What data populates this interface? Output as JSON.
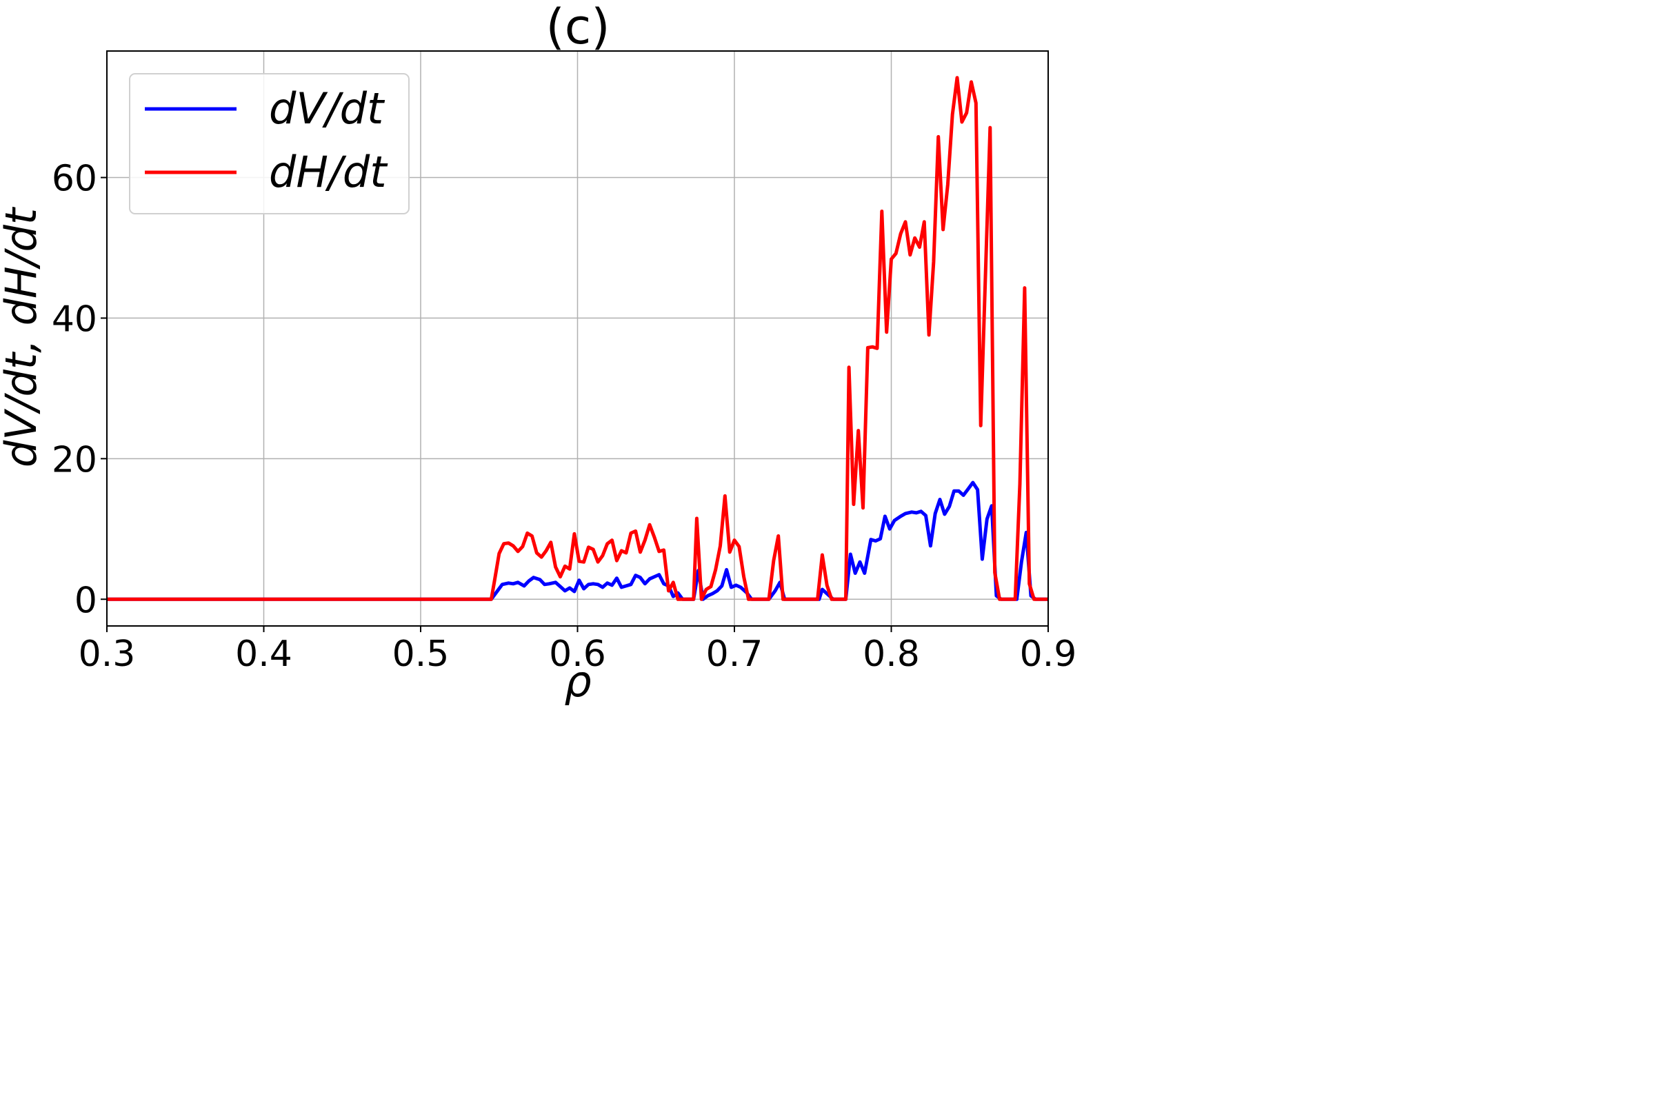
{
  "chart_data": {
    "type": "line",
    "title": "(c)",
    "xlabel": "ρ",
    "ylabel": "dV/dt, dH/dt",
    "xlim": [
      0.3,
      0.9
    ],
    "ylim": [
      -3.8,
      78
    ],
    "xticks": [
      0.3,
      0.4,
      0.5,
      0.6,
      0.7,
      0.8,
      0.9
    ],
    "xtick_labels": [
      "0.3",
      "0.4",
      "0.5",
      "0.6",
      "0.7",
      "0.8",
      "0.9"
    ],
    "yticks": [
      0,
      20,
      40,
      60
    ],
    "ytick_labels": [
      "0",
      "20",
      "40",
      "60"
    ],
    "grid": true,
    "legend_position": "top-left",
    "series": [
      {
        "name": "dV/dt",
        "color": "#0000ff",
        "points": [
          [
            0.3,
            0
          ],
          [
            0.545,
            0
          ],
          [
            0.549,
            1.2
          ],
          [
            0.552,
            2.1
          ],
          [
            0.556,
            2.3
          ],
          [
            0.559,
            2.2
          ],
          [
            0.562,
            2.4
          ],
          [
            0.566,
            1.9
          ],
          [
            0.569,
            2.6
          ],
          [
            0.572,
            3.1
          ],
          [
            0.576,
            2.8
          ],
          [
            0.579,
            2.1
          ],
          [
            0.582,
            2.2
          ],
          [
            0.586,
            2.4
          ],
          [
            0.589,
            1.8
          ],
          [
            0.592,
            1.2
          ],
          [
            0.595,
            1.6
          ],
          [
            0.598,
            1.1
          ],
          [
            0.601,
            2.7
          ],
          [
            0.604,
            1.5
          ],
          [
            0.607,
            2.1
          ],
          [
            0.61,
            2.2
          ],
          [
            0.613,
            2.1
          ],
          [
            0.616,
            1.7
          ],
          [
            0.619,
            2.3
          ],
          [
            0.622,
            2.0
          ],
          [
            0.625,
            3.0
          ],
          [
            0.628,
            1.7
          ],
          [
            0.631,
            1.9
          ],
          [
            0.634,
            2.1
          ],
          [
            0.637,
            3.4
          ],
          [
            0.64,
            3.1
          ],
          [
            0.643,
            2.2
          ],
          [
            0.646,
            2.9
          ],
          [
            0.649,
            3.2
          ],
          [
            0.652,
            3.5
          ],
          [
            0.655,
            2.2
          ],
          [
            0.658,
            1.9
          ],
          [
            0.661,
            0.4
          ],
          [
            0.664,
            0.9
          ],
          [
            0.667,
            0
          ],
          [
            0.674,
            0
          ],
          [
            0.677,
            4.1
          ],
          [
            0.68,
            0
          ],
          [
            0.683,
            0.5
          ],
          [
            0.686,
            0.8
          ],
          [
            0.689,
            1.2
          ],
          [
            0.692,
            1.9
          ],
          [
            0.695,
            4.2
          ],
          [
            0.698,
            1.7
          ],
          [
            0.701,
            2.0
          ],
          [
            0.704,
            1.7
          ],
          [
            0.708,
            0.9
          ],
          [
            0.711,
            0
          ],
          [
            0.722,
            0
          ],
          [
            0.726,
            1.2
          ],
          [
            0.729,
            2.4
          ],
          [
            0.732,
            0
          ],
          [
            0.754,
            0
          ],
          [
            0.756,
            1.4
          ],
          [
            0.759,
            0.8
          ],
          [
            0.763,
            0
          ],
          [
            0.771,
            0
          ],
          [
            0.774,
            6.4
          ],
          [
            0.777,
            3.7
          ],
          [
            0.78,
            5.3
          ],
          [
            0.783,
            3.7
          ],
          [
            0.787,
            8.5
          ],
          [
            0.79,
            8.3
          ],
          [
            0.793,
            8.6
          ],
          [
            0.796,
            11.8
          ],
          [
            0.799,
            10.0
          ],
          [
            0.802,
            11.2
          ],
          [
            0.806,
            11.8
          ],
          [
            0.809,
            12.2
          ],
          [
            0.813,
            12.4
          ],
          [
            0.816,
            12.3
          ],
          [
            0.819,
            12.5
          ],
          [
            0.822,
            11.9
          ],
          [
            0.825,
            7.6
          ],
          [
            0.828,
            12.2
          ],
          [
            0.831,
            14.2
          ],
          [
            0.834,
            12.1
          ],
          [
            0.837,
            13.2
          ],
          [
            0.84,
            15.4
          ],
          [
            0.843,
            15.4
          ],
          [
            0.846,
            14.8
          ],
          [
            0.849,
            15.7
          ],
          [
            0.852,
            16.6
          ],
          [
            0.855,
            15.6
          ],
          [
            0.858,
            5.7
          ],
          [
            0.861,
            11.4
          ],
          [
            0.864,
            13.3
          ],
          [
            0.867,
            0.5
          ],
          [
            0.87,
            0
          ],
          [
            0.88,
            0
          ],
          [
            0.883,
            5.3
          ],
          [
            0.886,
            9.5
          ],
          [
            0.889,
            0.5
          ],
          [
            0.892,
            0
          ],
          [
            0.9,
            0
          ]
        ]
      },
      {
        "name": "dH/dt",
        "color": "#ff0000",
        "points": [
          [
            0.3,
            0
          ],
          [
            0.545,
            0
          ],
          [
            0.547,
            2.5
          ],
          [
            0.55,
            6.5
          ],
          [
            0.553,
            7.9
          ],
          [
            0.556,
            8.0
          ],
          [
            0.559,
            7.6
          ],
          [
            0.562,
            6.8
          ],
          [
            0.565,
            7.5
          ],
          [
            0.568,
            9.4
          ],
          [
            0.571,
            9.0
          ],
          [
            0.574,
            6.6
          ],
          [
            0.577,
            6.0
          ],
          [
            0.58,
            6.9
          ],
          [
            0.583,
            8.1
          ],
          [
            0.586,
            4.6
          ],
          [
            0.589,
            3.2
          ],
          [
            0.592,
            4.7
          ],
          [
            0.595,
            4.3
          ],
          [
            0.598,
            9.3
          ],
          [
            0.601,
            5.4
          ],
          [
            0.604,
            5.3
          ],
          [
            0.607,
            7.4
          ],
          [
            0.61,
            7.1
          ],
          [
            0.613,
            5.3
          ],
          [
            0.616,
            6.2
          ],
          [
            0.619,
            7.9
          ],
          [
            0.622,
            8.4
          ],
          [
            0.625,
            5.5
          ],
          [
            0.628,
            6.9
          ],
          [
            0.631,
            6.6
          ],
          [
            0.634,
            9.4
          ],
          [
            0.637,
            9.7
          ],
          [
            0.64,
            6.7
          ],
          [
            0.643,
            8.4
          ],
          [
            0.646,
            10.6
          ],
          [
            0.649,
            8.8
          ],
          [
            0.652,
            6.8
          ],
          [
            0.655,
            7.0
          ],
          [
            0.658,
            1.2
          ],
          [
            0.661,
            2.4
          ],
          [
            0.664,
            0
          ],
          [
            0.674,
            0
          ],
          [
            0.676,
            11.5
          ],
          [
            0.679,
            0
          ],
          [
            0.682,
            1.4
          ],
          [
            0.685,
            1.8
          ],
          [
            0.688,
            4.2
          ],
          [
            0.691,
            7.6
          ],
          [
            0.694,
            14.7
          ],
          [
            0.697,
            6.7
          ],
          [
            0.7,
            8.4
          ],
          [
            0.703,
            7.5
          ],
          [
            0.706,
            3.2
          ],
          [
            0.709,
            0
          ],
          [
            0.722,
            0
          ],
          [
            0.725,
            5.5
          ],
          [
            0.728,
            9.0
          ],
          [
            0.731,
            0
          ],
          [
            0.753,
            0
          ],
          [
            0.756,
            6.3
          ],
          [
            0.759,
            2.0
          ],
          [
            0.762,
            0
          ],
          [
            0.771,
            0
          ],
          [
            0.773,
            33.0
          ],
          [
            0.776,
            13.5
          ],
          [
            0.779,
            24.0
          ],
          [
            0.782,
            13.0
          ],
          [
            0.785,
            35.8
          ],
          [
            0.788,
            35.9
          ],
          [
            0.791,
            35.7
          ],
          [
            0.794,
            55.2
          ],
          [
            0.797,
            38.0
          ],
          [
            0.8,
            48.4
          ],
          [
            0.803,
            49.2
          ],
          [
            0.806,
            52.0
          ],
          [
            0.809,
            53.7
          ],
          [
            0.812,
            49.0
          ],
          [
            0.815,
            51.4
          ],
          [
            0.818,
            50.1
          ],
          [
            0.821,
            53.7
          ],
          [
            0.824,
            37.6
          ],
          [
            0.827,
            48.0
          ],
          [
            0.83,
            65.8
          ],
          [
            0.833,
            52.6
          ],
          [
            0.836,
            59.0
          ],
          [
            0.839,
            69.0
          ],
          [
            0.842,
            74.2
          ],
          [
            0.845,
            67.9
          ],
          [
            0.848,
            69.2
          ],
          [
            0.851,
            73.6
          ],
          [
            0.854,
            70.6
          ],
          [
            0.857,
            24.7
          ],
          [
            0.863,
            67.1
          ],
          [
            0.866,
            3.8
          ],
          [
            0.869,
            0
          ],
          [
            0.879,
            0
          ],
          [
            0.882,
            16.4
          ],
          [
            0.885,
            44.3
          ],
          [
            0.888,
            2.2
          ],
          [
            0.891,
            0
          ],
          [
            0.9,
            0
          ]
        ]
      }
    ]
  }
}
